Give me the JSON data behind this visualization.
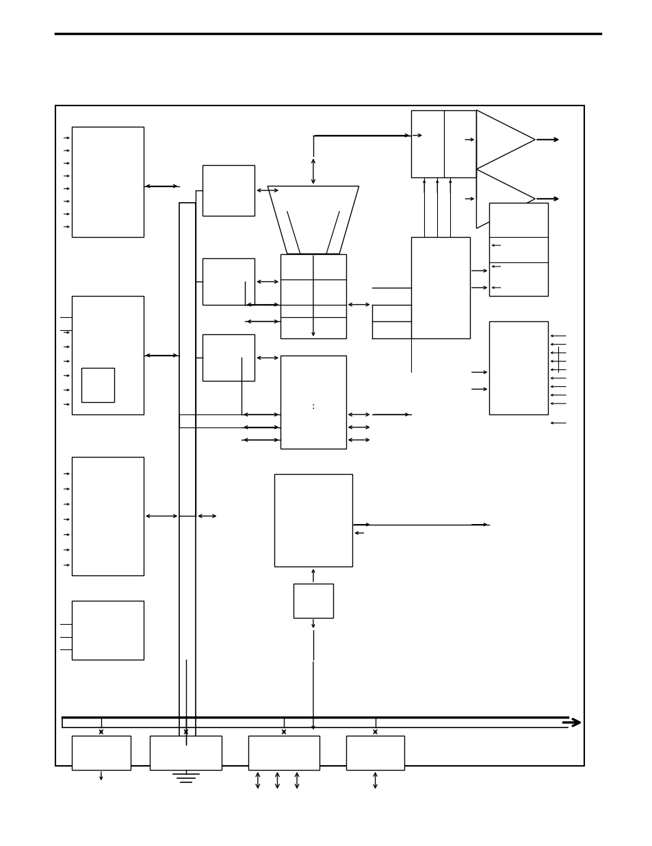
{
  "fig_width": 9.54,
  "fig_height": 12.35,
  "dpi": 100,
  "bg": "#ffffff",
  "lc": "#000000",
  "lw": 1.0
}
